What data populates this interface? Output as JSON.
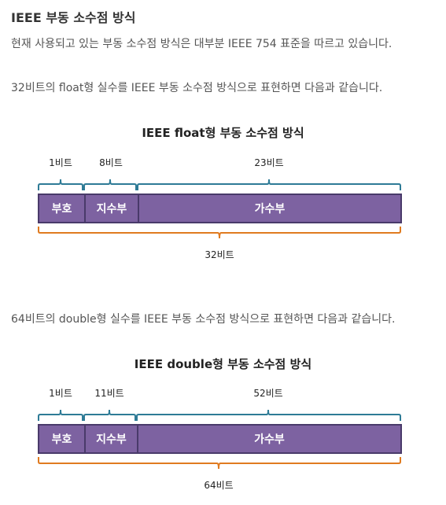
{
  "heading": "IEEE 부동 소수점 방식",
  "intro": "현재 사용되고 있는 부동 소수점 방식은 대부분 IEEE 754 표준을 따르고 있습니다.",
  "float_section": {
    "description": "32비트의 float형 실수를 IEEE 부동 소수점 방식으로 표현하면 다음과 같습니다.",
    "title": "IEEE float형 부동 소수점 방식",
    "top_labels": [
      "1비트",
      "8비트",
      "23비트"
    ],
    "fields": [
      "부호",
      "지수부",
      "가수부"
    ],
    "total_label": "32비트"
  },
  "double_section": {
    "description": "64비트의 double형 실수를 IEEE 부동 소수점 방식으로 표현하면 다음과 같습니다.",
    "title": "IEEE double형 부동 소수점 방식",
    "top_labels": [
      "1비트",
      "11비트",
      "52비트"
    ],
    "fields": [
      "부호",
      "지수부",
      "가수부"
    ],
    "total_label": "64비트"
  },
  "colors": {
    "bar_fill": "#7d62a1",
    "bar_border": "#493a6a",
    "top_brace": "#2e7b96",
    "bottom_brace": "#e07b20"
  }
}
